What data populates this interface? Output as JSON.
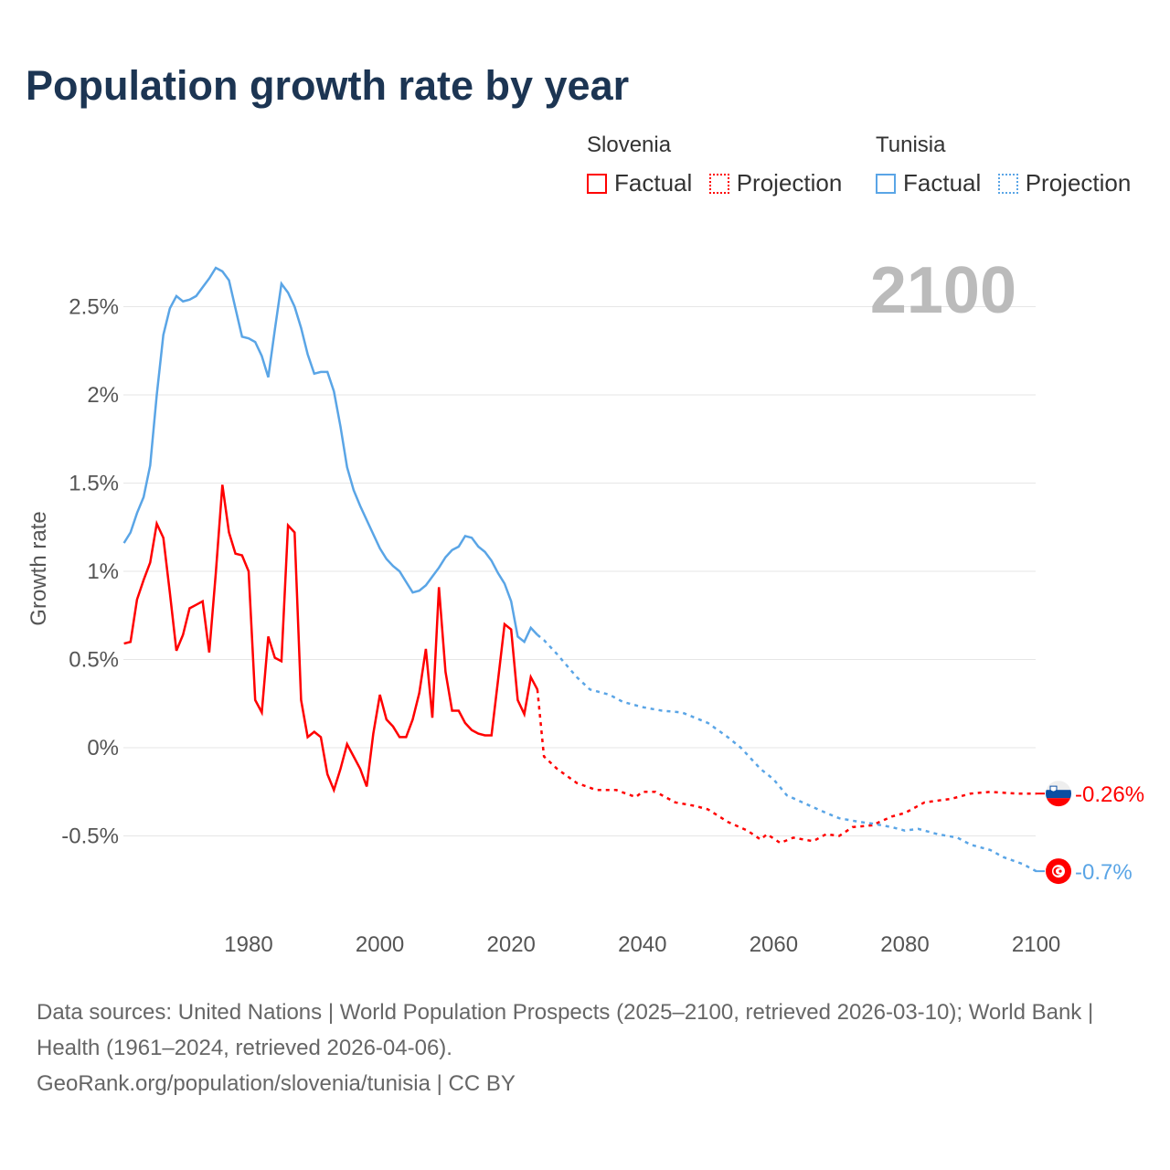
{
  "chart_data": {
    "type": "line",
    "title": "Population growth rate by year",
    "xlabel": "",
    "ylabel": "Growth rate",
    "xlim": [
      1961,
      2100
    ],
    "ylim": [
      -0.85,
      2.85
    ],
    "x_ticks": [
      1980,
      2000,
      2020,
      2040,
      2060,
      2080,
      2100
    ],
    "x_tick_labels": [
      "1980",
      "2000",
      "2020",
      "2040",
      "2060",
      "2080",
      "2100"
    ],
    "y_ticks": [
      -0.5,
      0,
      0.5,
      1,
      1.5,
      2,
      2.5
    ],
    "y_tick_labels": [
      "-0.5%",
      "0%",
      "0.5%",
      "1%",
      "1.5%",
      "2%",
      "2.5%"
    ],
    "grid": true,
    "year_label": "2100",
    "legend": {
      "placement": "top-right",
      "groups": [
        {
          "name": "Slovenia",
          "factual": "Factual",
          "projection": "Projection"
        },
        {
          "name": "Tunisia",
          "factual": "Factual",
          "projection": "Projection"
        }
      ]
    },
    "series": [
      {
        "name": "Slovenia",
        "color": "#ff0000",
        "end_label": "-0.26%",
        "factual": {
          "x": [
            1961,
            1962,
            1963,
            1964,
            1965,
            1966,
            1967,
            1968,
            1969,
            1970,
            1971,
            1972,
            1973,
            1974,
            1975,
            1976,
            1977,
            1978,
            1979,
            1980,
            1981,
            1982,
            1983,
            1984,
            1985,
            1986,
            1987,
            1988,
            1989,
            1990,
            1991,
            1992,
            1993,
            1994,
            1995,
            1996,
            1997,
            1998,
            1999,
            2000,
            2001,
            2002,
            2003,
            2004,
            2005,
            2006,
            2007,
            2008,
            2009,
            2010,
            2011,
            2012,
            2013,
            2014,
            2015,
            2016,
            2017,
            2018,
            2019,
            2020,
            2021,
            2022,
            2023,
            2024
          ],
          "y": [
            0.59,
            0.6,
            0.84,
            0.95,
            1.05,
            1.27,
            1.19,
            0.88,
            0.55,
            0.64,
            0.79,
            0.81,
            0.83,
            0.54,
            0.99,
            1.49,
            1.22,
            1.1,
            1.09,
            1.0,
            0.27,
            0.2,
            0.63,
            0.51,
            0.49,
            1.26,
            1.22,
            0.27,
            0.06,
            0.09,
            0.06,
            -0.15,
            -0.24,
            -0.12,
            0.02,
            -0.05,
            -0.12,
            -0.22,
            0.08,
            0.3,
            0.16,
            0.12,
            0.06,
            0.06,
            0.16,
            0.31,
            0.56,
            0.17,
            0.91,
            0.43,
            0.21,
            0.21,
            0.14,
            0.1,
            0.08,
            0.07,
            0.07,
            0.38,
            0.7,
            0.67,
            0.27,
            0.19,
            0.4,
            0.33
          ]
        },
        "projection": {
          "x": [
            2024,
            2025,
            2027,
            2030,
            2033,
            2036,
            2039,
            2040,
            2042,
            2045,
            2048,
            2050,
            2053,
            2056,
            2058,
            2059,
            2061,
            2063,
            2066,
            2068,
            2070,
            2072,
            2075,
            2078,
            2080,
            2083,
            2087,
            2090,
            2093,
            2097,
            2100
          ],
          "y": [
            0.33,
            -0.05,
            -0.12,
            -0.2,
            -0.24,
            -0.24,
            -0.28,
            -0.25,
            -0.25,
            -0.31,
            -0.33,
            -0.35,
            -0.42,
            -0.47,
            -0.52,
            -0.49,
            -0.54,
            -0.51,
            -0.53,
            -0.49,
            -0.5,
            -0.45,
            -0.44,
            -0.39,
            -0.37,
            -0.31,
            -0.29,
            -0.26,
            -0.25,
            -0.26,
            -0.26
          ]
        }
      },
      {
        "name": "Tunisia",
        "color": "#5aa5e6",
        "end_label": "-0.7%",
        "factual": {
          "x": [
            1961,
            1962,
            1963,
            1964,
            1965,
            1966,
            1967,
            1968,
            1969,
            1970,
            1971,
            1972,
            1973,
            1974,
            1975,
            1976,
            1977,
            1978,
            1979,
            1980,
            1981,
            1982,
            1983,
            1984,
            1985,
            1986,
            1987,
            1988,
            1989,
            1990,
            1991,
            1992,
            1993,
            1994,
            1995,
            1996,
            1997,
            1998,
            1999,
            2000,
            2001,
            2002,
            2003,
            2004,
            2005,
            2006,
            2007,
            2008,
            2009,
            2010,
            2011,
            2012,
            2013,
            2014,
            2015,
            2016,
            2017,
            2018,
            2019,
            2020,
            2021,
            2022,
            2023,
            2024
          ],
          "y": [
            1.16,
            1.22,
            1.33,
            1.42,
            1.6,
            2.0,
            2.34,
            2.49,
            2.56,
            2.53,
            2.54,
            2.56,
            2.61,
            2.66,
            2.72,
            2.7,
            2.65,
            2.49,
            2.33,
            2.32,
            2.3,
            2.22,
            2.1,
            2.37,
            2.63,
            2.58,
            2.5,
            2.38,
            2.23,
            2.12,
            2.13,
            2.13,
            2.02,
            1.82,
            1.59,
            1.46,
            1.37,
            1.29,
            1.21,
            1.13,
            1.07,
            1.03,
            1.0,
            0.94,
            0.88,
            0.89,
            0.92,
            0.97,
            1.02,
            1.08,
            1.12,
            1.14,
            1.2,
            1.19,
            1.14,
            1.11,
            1.06,
            0.99,
            0.93,
            0.83,
            0.63,
            0.6,
            0.68,
            0.64
          ]
        },
        "projection": {
          "x": [
            2024,
            2025,
            2027,
            2030,
            2032,
            2035,
            2037,
            2040,
            2043,
            2046,
            2048,
            2050,
            2053,
            2055,
            2058,
            2060,
            2062,
            2065,
            2068,
            2070,
            2073,
            2075,
            2078,
            2080,
            2082,
            2085,
            2088,
            2090,
            2093,
            2095,
            2098,
            2100
          ],
          "y": [
            0.64,
            0.61,
            0.53,
            0.4,
            0.33,
            0.3,
            0.26,
            0.23,
            0.21,
            0.2,
            0.17,
            0.14,
            0.06,
            0.0,
            -0.12,
            -0.18,
            -0.27,
            -0.32,
            -0.37,
            -0.4,
            -0.42,
            -0.43,
            -0.45,
            -0.47,
            -0.46,
            -0.49,
            -0.51,
            -0.55,
            -0.58,
            -0.62,
            -0.66,
            -0.7
          ]
        }
      }
    ]
  },
  "footer": {
    "sources": "Data sources: United Nations | World Population Prospects (2025–2100, retrieved 2026-03-10); World Bank | Health (1961–2024, retrieved 2026-04-06).",
    "credit": "GeoRank.org/population/slovenia/tunisia | CC BY"
  }
}
